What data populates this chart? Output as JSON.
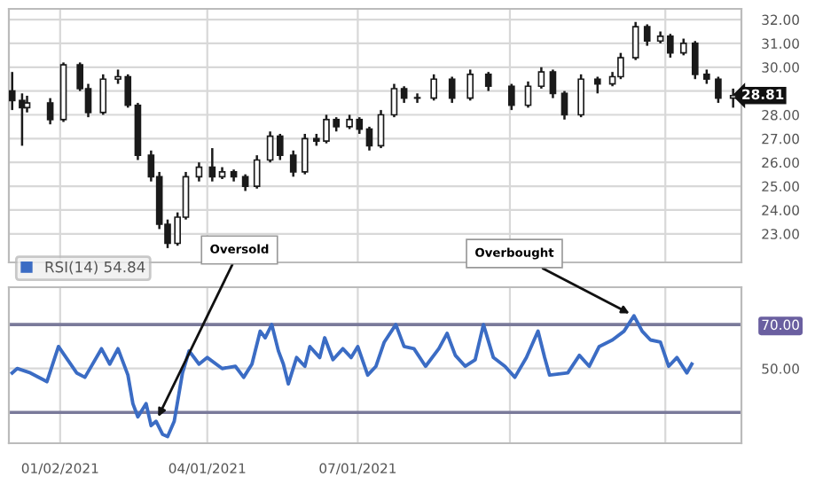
{
  "chart_data": [
    {
      "type": "candlestick",
      "xlim": [
        "2020-12-02",
        "2022-02-18"
      ],
      "ylim": [
        21.8,
        32.45
      ],
      "yticks": [
        {
          "value": 23,
          "label": "23.00"
        },
        {
          "value": 24,
          "label": "24.00"
        },
        {
          "value": 25,
          "label": "25.00"
        },
        {
          "value": 26,
          "label": "26.00"
        },
        {
          "value": 27,
          "label": "27.00"
        },
        {
          "value": 28,
          "label": "28.00"
        },
        {
          "value": 29,
          "label": null
        },
        {
          "value": 30,
          "label": "30.00"
        },
        {
          "value": 31,
          "label": "31.00"
        },
        {
          "value": 32,
          "label": "32.00"
        }
      ],
      "xticks": [
        {
          "value": "2021-01-02",
          "label": null
        },
        {
          "value": "2021-04-01",
          "label": null
        },
        {
          "value": "2021-07-01",
          "label": null
        },
        {
          "value": "2021-10-01",
          "label": null
        },
        {
          "value": "2022-01-03",
          "label": null
        }
      ],
      "tick_labels": "y",
      "grid": true,
      "x": [
        "2020-12-04",
        "2020-12-10",
        "2020-12-13",
        "2020-12-27",
        "2021-01-04",
        "2021-01-14",
        "2021-01-19",
        "2021-01-28",
        "2021-02-06",
        "2021-02-12",
        "2021-02-18",
        "2021-02-26",
        "2021-03-03",
        "2021-03-08",
        "2021-03-14",
        "2021-03-19",
        "2021-03-27",
        "2021-04-04",
        "2021-04-10",
        "2021-04-17",
        "2021-04-24",
        "2021-05-01",
        "2021-05-09",
        "2021-05-15",
        "2021-05-23",
        "2021-05-30",
        "2021-06-06",
        "2021-06-12",
        "2021-06-18",
        "2021-06-26",
        "2021-07-02",
        "2021-07-08",
        "2021-07-15",
        "2021-07-23",
        "2021-07-29",
        "2021-08-06",
        "2021-08-16",
        "2021-08-27",
        "2021-09-07",
        "2021-09-18",
        "2021-10-02",
        "2021-10-12",
        "2021-10-20",
        "2021-10-27",
        "2021-11-03",
        "2021-11-13",
        "2021-11-23",
        "2021-12-02",
        "2021-12-07",
        "2021-12-16",
        "2021-12-23",
        "2021-12-31",
        "2022-01-06",
        "2022-01-14",
        "2022-01-21",
        "2022-01-28",
        "2022-02-04",
        "2022-02-13"
      ],
      "ohlc": [
        [
          29.0,
          29.8,
          28.2,
          28.6
        ],
        [
          28.6,
          28.9,
          26.7,
          28.3
        ],
        [
          28.3,
          28.8,
          28.1,
          28.5
        ],
        [
          28.5,
          28.7,
          27.6,
          27.8
        ],
        [
          27.8,
          30.2,
          27.7,
          30.1
        ],
        [
          30.1,
          30.2,
          29.0,
          29.1
        ],
        [
          29.1,
          29.3,
          27.9,
          28.1
        ],
        [
          28.1,
          29.7,
          28.0,
          29.5
        ],
        [
          29.5,
          29.9,
          29.3,
          29.6
        ],
        [
          29.6,
          29.7,
          28.3,
          28.4
        ],
        [
          28.4,
          28.5,
          26.1,
          26.3
        ],
        [
          26.3,
          26.5,
          25.2,
          25.4
        ],
        [
          25.4,
          25.6,
          23.2,
          23.4
        ],
        [
          23.4,
          23.6,
          22.4,
          22.6
        ],
        [
          22.6,
          23.9,
          22.5,
          23.7
        ],
        [
          23.7,
          25.6,
          23.6,
          25.4
        ],
        [
          25.4,
          26.0,
          25.2,
          25.8
        ],
        [
          25.8,
          26.6,
          25.2,
          25.4
        ],
        [
          25.4,
          25.8,
          25.3,
          25.6
        ],
        [
          25.6,
          25.7,
          25.2,
          25.4
        ],
        [
          25.4,
          25.5,
          24.8,
          25.0
        ],
        [
          25.0,
          26.3,
          24.9,
          26.1
        ],
        [
          26.1,
          27.3,
          26.0,
          27.1
        ],
        [
          27.1,
          27.2,
          26.1,
          26.3
        ],
        [
          26.3,
          26.5,
          25.4,
          25.6
        ],
        [
          25.6,
          27.2,
          25.5,
          27.0
        ],
        [
          27.0,
          27.2,
          26.7,
          26.9
        ],
        [
          26.9,
          28.0,
          26.8,
          27.8
        ],
        [
          27.8,
          27.9,
          27.3,
          27.5
        ],
        [
          27.5,
          28.0,
          27.4,
          27.8
        ],
        [
          27.8,
          27.9,
          27.2,
          27.4
        ],
        [
          27.4,
          27.5,
          26.5,
          26.7
        ],
        [
          26.7,
          28.2,
          26.6,
          28.0
        ],
        [
          28.0,
          29.3,
          27.9,
          29.1
        ],
        [
          29.1,
          29.2,
          28.5,
          28.7
        ],
        [
          28.7,
          28.9,
          28.5,
          28.7
        ],
        [
          28.7,
          29.7,
          28.6,
          29.5
        ],
        [
          29.5,
          29.6,
          28.5,
          28.7
        ],
        [
          28.7,
          29.9,
          28.6,
          29.7
        ],
        [
          29.7,
          29.8,
          29.0,
          29.2
        ],
        [
          29.2,
          29.3,
          28.2,
          28.4
        ],
        [
          28.4,
          29.4,
          28.3,
          29.2
        ],
        [
          29.2,
          30.0,
          29.1,
          29.8
        ],
        [
          29.8,
          29.9,
          28.7,
          28.9
        ],
        [
          28.9,
          29.0,
          27.8,
          28.0
        ],
        [
          28.0,
          29.7,
          27.9,
          29.5
        ],
        [
          29.5,
          29.6,
          28.9,
          29.3
        ],
        [
          29.3,
          29.8,
          29.2,
          29.6
        ],
        [
          29.6,
          30.6,
          29.5,
          30.4
        ],
        [
          30.4,
          31.9,
          30.3,
          31.7
        ],
        [
          31.7,
          31.8,
          30.9,
          31.1
        ],
        [
          31.1,
          31.5,
          31.0,
          31.3
        ],
        [
          31.3,
          31.4,
          30.4,
          30.6
        ],
        [
          30.6,
          31.2,
          30.5,
          31.0
        ],
        [
          31.0,
          31.1,
          29.5,
          29.7
        ],
        [
          29.7,
          29.9,
          29.3,
          29.5
        ],
        [
          29.5,
          29.6,
          28.5,
          28.7
        ],
        [
          28.7,
          29.1,
          28.3,
          28.81
        ]
      ],
      "annotations": [
        {
          "text": "28.81",
          "x": "2022-02-13",
          "y": 28.81
        }
      ]
    },
    {
      "type": "line",
      "xlim": [
        "2020-12-02",
        "2022-02-18"
      ],
      "ylim": [
        16,
        87
      ],
      "yticks": [
        {
          "value": 50,
          "label": "50.00"
        },
        {
          "value": 70,
          "label": "70.00"
        }
      ],
      "xticks": [
        {
          "value": "2021-01-02",
          "label": "01/02/2021"
        },
        {
          "value": "2021-04-01",
          "label": "04/01/2021"
        },
        {
          "value": "2021-07-01",
          "label": "07/01/2021"
        },
        {
          "value": "2021-10-01",
          "label": null
        },
        {
          "value": "2022-01-03",
          "label": null
        }
      ],
      "grid": true,
      "legend": "top left",
      "ref_lines": [
        {
          "axis": "y",
          "value": 70,
          "color": "#7a7a9a"
        },
        {
          "axis": "y",
          "value": 30,
          "color": "#7a7a9a"
        }
      ],
      "series": [
        {
          "name": "RSI(14) 54.84",
          "color": "#3b6cc4",
          "x": [
            "2020-12-04",
            "2020-12-07",
            "2020-12-15",
            "2020-12-25",
            "2021-01-01",
            "2021-01-12",
            "2021-01-17",
            "2021-01-27",
            "2021-02-01",
            "2021-02-06",
            "2021-02-12",
            "2021-02-15",
            "2021-02-18",
            "2021-02-23",
            "2021-02-26",
            "2021-03-01",
            "2021-03-05",
            "2021-03-08",
            "2021-03-12",
            "2021-03-17",
            "2021-03-21",
            "2021-03-27",
            "2021-04-01",
            "2021-04-10",
            "2021-04-18",
            "2021-04-23",
            "2021-04-28",
            "2021-05-03",
            "2021-05-06",
            "2021-05-10",
            "2021-05-14",
            "2021-05-17",
            "2021-05-20",
            "2021-05-25",
            "2021-05-30",
            "2021-06-02",
            "2021-06-08",
            "2021-06-11",
            "2021-06-16",
            "2021-06-22",
            "2021-06-27",
            "2021-07-01",
            "2021-07-07",
            "2021-07-12",
            "2021-07-17",
            "2021-07-24",
            "2021-07-29",
            "2021-08-04",
            "2021-08-11",
            "2021-08-19",
            "2021-08-24",
            "2021-08-29",
            "2021-09-04",
            "2021-09-10",
            "2021-09-15",
            "2021-09-21",
            "2021-09-28",
            "2021-10-04",
            "2021-10-11",
            "2021-10-18",
            "2021-10-22",
            "2021-10-25",
            "2021-11-05",
            "2021-11-12",
            "2021-11-18",
            "2021-11-24",
            "2021-12-02",
            "2021-12-09",
            "2021-12-15",
            "2021-12-20",
            "2021-12-25",
            "2021-12-31",
            "2022-01-05",
            "2022-01-10",
            "2022-01-16",
            "2022-01-19"
          ],
          "values": [
            48,
            50,
            48,
            44,
            60,
            48,
            46,
            59,
            52,
            59,
            47,
            34,
            28,
            34,
            24,
            26,
            20,
            19,
            26,
            48,
            58,
            52,
            55,
            50,
            51,
            46,
            52,
            67,
            64,
            70,
            58,
            52,
            43,
            55,
            51,
            60,
            55,
            64,
            54,
            59,
            55,
            60,
            47,
            51,
            62,
            70,
            60,
            59,
            51,
            59,
            66,
            56,
            51,
            54,
            70,
            55,
            51,
            46,
            55,
            67,
            55,
            47,
            48,
            56,
            51,
            60,
            63,
            67,
            74,
            67,
            63,
            62,
            51,
            55,
            48,
            52
          ]
        }
      ],
      "annotations": [
        {
          "text": "Oversold",
          "x": "2021-03-01",
          "y": 26
        },
        {
          "text": "Overbought",
          "x": "2021-12-15",
          "y": 74
        }
      ]
    }
  ]
}
